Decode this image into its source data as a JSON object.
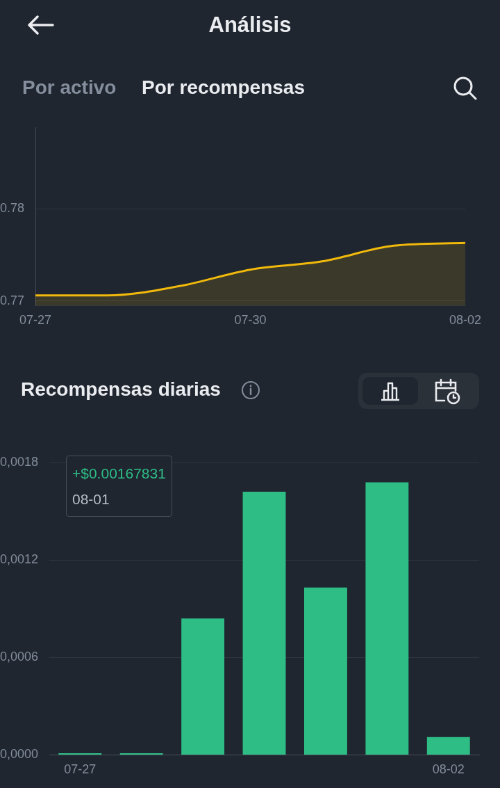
{
  "chart_data": [
    {
      "type": "area",
      "annotations": [
        "Análisis",
        "Por activo",
        "Por recompensas"
      ],
      "categories": [
        "07-27",
        null,
        null,
        "07-30",
        null,
        null,
        "08-02"
      ],
      "values": [
        0.7706,
        0.7706,
        0.7716,
        0.7734,
        0.7743,
        0.776,
        0.7763
      ],
      "color": "#f0b90b",
      "ylim": [
        0.7695,
        0.7888
      ],
      "yticks": [
        0.77,
        0.78
      ],
      "grid": "y"
    },
    {
      "type": "bar",
      "title": "Recompensas diarias",
      "categories": [
        "07-27",
        null,
        null,
        null,
        null,
        null,
        "08-02"
      ],
      "values": [
        1e-05,
        1e-05,
        0.00084,
        0.00162,
        0.00103,
        0.00167831,
        0.00011
      ],
      "color": "#2ebd85",
      "ylim": [
        0,
        0.0018
      ],
      "yticks": [
        {
          "value": 0,
          "label": "0,0000"
        },
        {
          "value": 0.0006,
          "label": "0,0006"
        },
        {
          "value": 0.0012,
          "label": "0,0012"
        },
        {
          "value": 0.0018,
          "label": "0,0018"
        }
      ],
      "grid": "y",
      "annotations": [
        "+$0.00167831",
        "08-01"
      ]
    }
  ]
}
